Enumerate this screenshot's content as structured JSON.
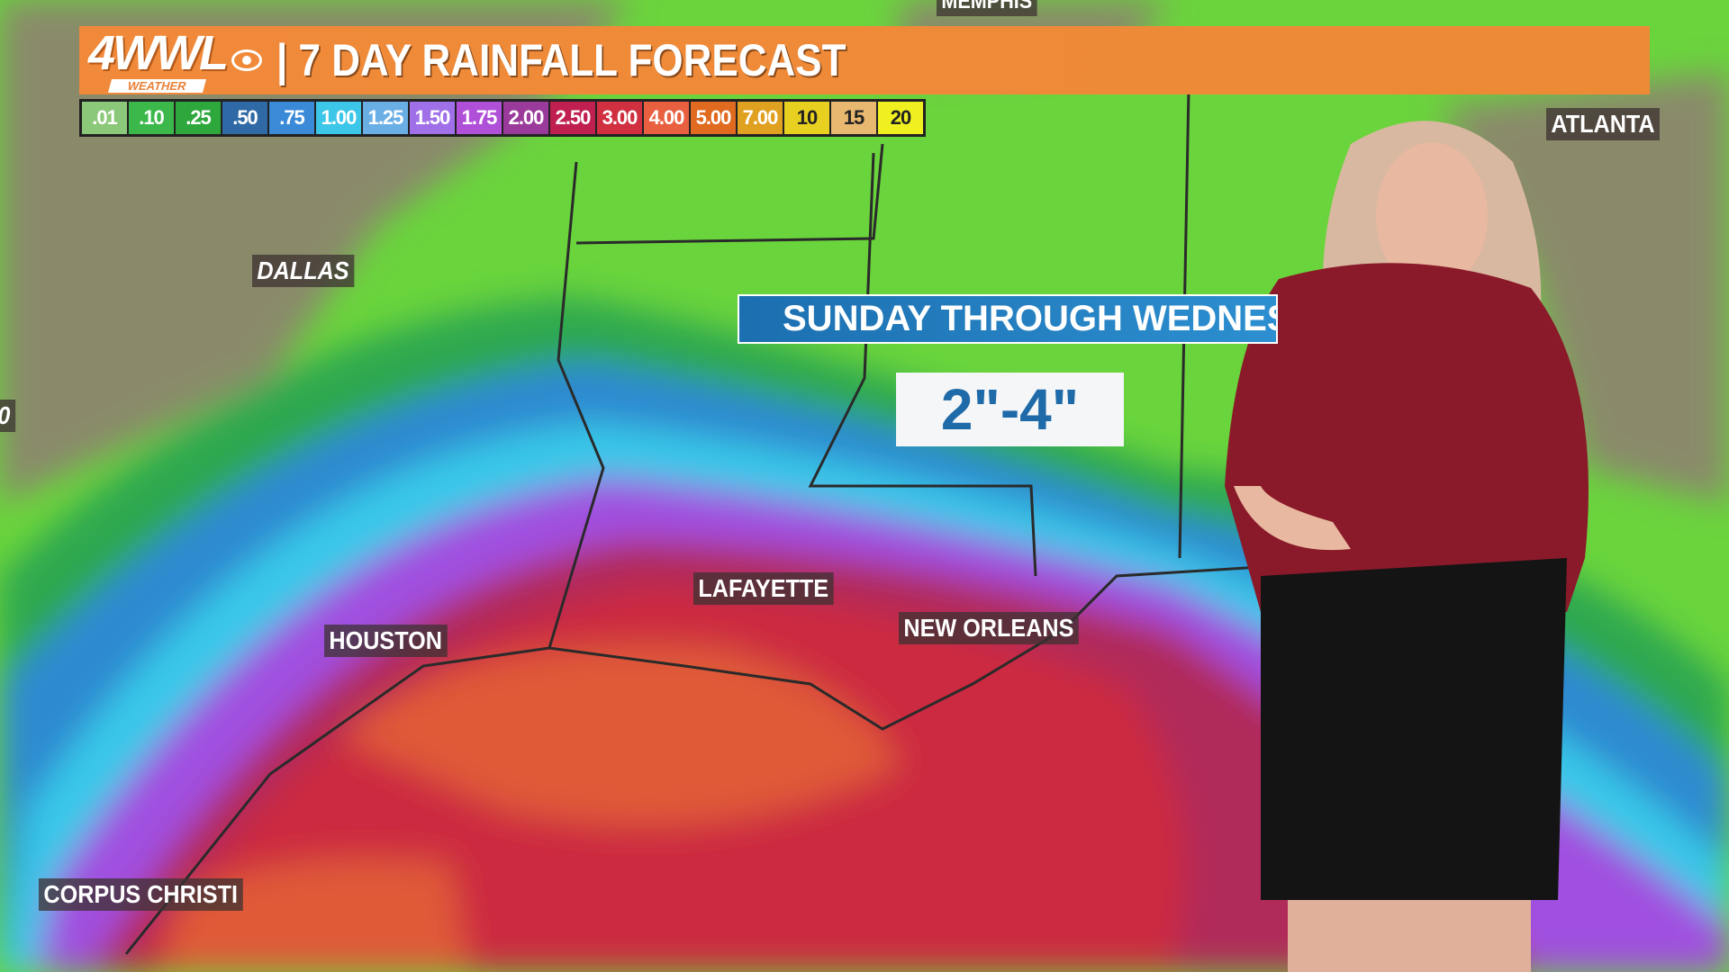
{
  "header": {
    "logo": "4WWL",
    "logo_sub": "WEATHER",
    "title": "| 7 DAY RAINFALL FORECAST",
    "accent": "#ec8a36"
  },
  "legend": [
    {
      "label": ".01",
      "color": "#8cc87a"
    },
    {
      "label": ".10",
      "color": "#3cb84a"
    },
    {
      "label": ".25",
      "color": "#2ea83c"
    },
    {
      "label": ".50",
      "color": "#2f6aa6"
    },
    {
      "label": ".75",
      "color": "#3a8ad8"
    },
    {
      "label": "1.00",
      "color": "#3cc6e8"
    },
    {
      "label": "1.25",
      "color": "#6aaee6"
    },
    {
      "label": "1.50",
      "color": "#a070e8"
    },
    {
      "label": "1.75",
      "color": "#b050d8"
    },
    {
      "label": "2.00",
      "color": "#9a3a9a"
    },
    {
      "label": "2.50",
      "color": "#c02050"
    },
    {
      "label": "3.00",
      "color": "#d03040"
    },
    {
      "label": "4.00",
      "color": "#e86040"
    },
    {
      "label": "5.00",
      "color": "#e06a20"
    },
    {
      "label": "7.00",
      "color": "#e0a020"
    },
    {
      "label": "10",
      "color": "#e8d020",
      "dark": true
    },
    {
      "label": "15",
      "color": "#e8b870",
      "dark": true
    },
    {
      "label": "20",
      "color": "#f0f020",
      "dark": true
    }
  ],
  "cities": {
    "memphis": "MEMPHIS",
    "atlanta": "ATLANTA",
    "dallas": "DALLAS",
    "lafayette": "LAFAYETTE",
    "new_orleans": "NEW ORLEANS",
    "houston": "HOUSTON",
    "corpus_christi": "CORPUS CHRISTI",
    "edge": "0"
  },
  "banner": {
    "period": "SUNDAY THROUGH WEDNESDAY",
    "amount": "2\"-4\""
  }
}
